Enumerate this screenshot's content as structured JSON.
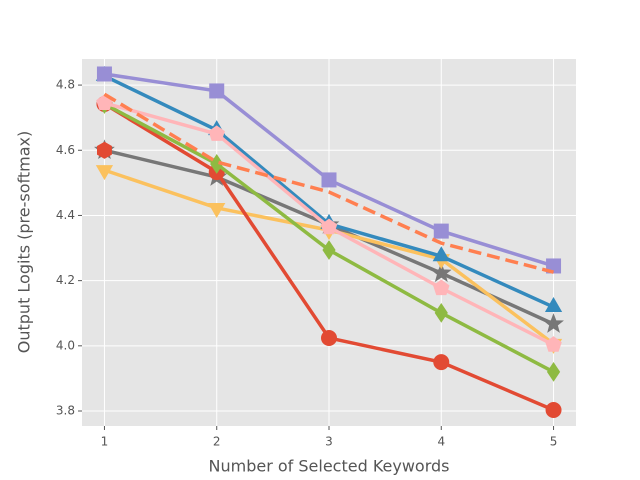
{
  "chart_data": {
    "type": "line",
    "xlabel": "Number of Selected Keywords",
    "ylabel": "Output Logits (pre-softmax)",
    "x": [
      1,
      2,
      3,
      4,
      5
    ],
    "xlim": [
      0.8,
      5.2
    ],
    "xticks": [
      1,
      2,
      3,
      4,
      5
    ],
    "ylim": [
      3.754,
      4.88
    ],
    "yticks": [
      3.8,
      {
        "value": 4.0,
        "label": "4.0"
      },
      4.2,
      4.4,
      4.6,
      4.8
    ],
    "grid": true,
    "series": [
      {
        "color": "#777777",
        "marker": "star",
        "linestyle": "solid",
        "values": [
          4.6,
          4.518,
          4.371,
          4.223,
          4.067
        ]
      },
      {
        "color": "#FBC15E",
        "marker": "triangle-down",
        "linestyle": "solid",
        "values": [
          4.539,
          4.423,
          4.355,
          4.266,
          4.006
        ]
      },
      {
        "color": "#E24A33",
        "marker": "circle",
        "linestyle": "solid",
        "values": [
          4.742,
          4.533,
          4.024,
          3.95,
          3.803
        ]
      },
      {
        "color": "#8EBA42",
        "marker": "diamond",
        "linestyle": "solid",
        "values": [
          4.742,
          4.558,
          4.294,
          4.101,
          3.92
        ]
      },
      {
        "color": "#348ABD",
        "marker": "triangle-up",
        "linestyle": "solid",
        "values": [
          4.828,
          4.662,
          4.374,
          4.275,
          4.119
        ]
      },
      {
        "color": "#FFB5B8",
        "marker": "pentagon",
        "linestyle": "solid",
        "values": [
          4.745,
          4.65,
          4.364,
          4.177,
          4.003
        ]
      },
      {
        "color": "#988ED5",
        "marker": "square",
        "linestyle": "solid",
        "values": [
          4.834,
          4.782,
          4.509,
          4.352,
          4.245
        ]
      },
      {
        "color": "#FF7F50",
        "marker": "none",
        "linestyle": "dashed",
        "values": [
          4.772,
          4.564,
          4.472,
          4.315,
          4.226
        ]
      },
      {
        "color": "#E24A33",
        "marker": "hexagon",
        "linestyle": "solid",
        "values": [
          4.6,
          null,
          null,
          null,
          null
        ]
      }
    ]
  }
}
